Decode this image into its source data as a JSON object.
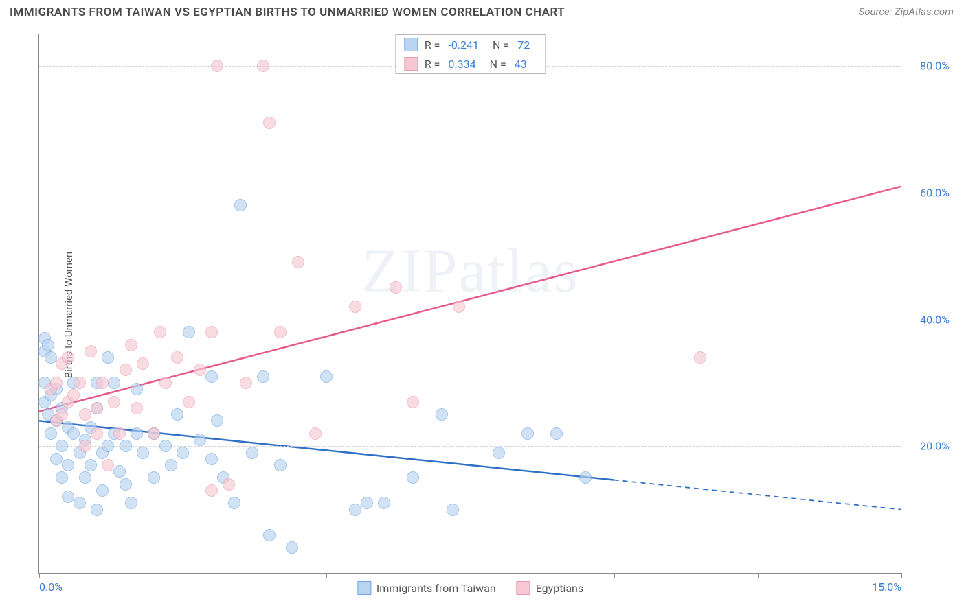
{
  "title": "IMMIGRANTS FROM TAIWAN VS EGYPTIAN BIRTHS TO UNMARRIED WOMEN CORRELATION CHART",
  "source": "Source: ZipAtlas.com",
  "watermark": "ZIPatlas",
  "chart": {
    "type": "scatter",
    "ylabel": "Births to Unmarried Women",
    "xlim": [
      0,
      15
    ],
    "ylim": [
      0,
      85
    ],
    "xtick_positions": [
      0,
      2.5,
      5,
      7.5,
      10,
      12.5,
      15
    ],
    "xtick_labels": {
      "0": "0.0%",
      "15": "15.0%"
    },
    "ytick_positions": [
      20,
      40,
      60,
      80
    ],
    "ytick_labels": {
      "20": "20.0%",
      "40": "40.0%",
      "60": "60.0%",
      "80": "80.0%"
    },
    "grid_color": "#d8d8d8",
    "axis_color": "#888888",
    "background_color": "#ffffff",
    "tick_label_color": "#3b7fd4",
    "marker_radius": 9,
    "series": [
      {
        "name": "Immigrants from Taiwan",
        "color_fill": "#b9d4f1",
        "color_stroke": "#6fa8e0",
        "fill_opacity": 0.65,
        "R": "-0.241",
        "N": "72",
        "trend": {
          "x1": 0,
          "y1": 24,
          "x2": 15,
          "y2": 10,
          "solid_until_x": 10,
          "color": "#2f6fc4",
          "width": 2.5
        },
        "points": [
          [
            0.1,
            30
          ],
          [
            0.1,
            35
          ],
          [
            0.1,
            37
          ],
          [
            0.15,
            36
          ],
          [
            0.1,
            27
          ],
          [
            0.15,
            25
          ],
          [
            0.2,
            28
          ],
          [
            0.2,
            34
          ],
          [
            0.2,
            22
          ],
          [
            0.3,
            29
          ],
          [
            0.3,
            24
          ],
          [
            0.3,
            18
          ],
          [
            0.4,
            26
          ],
          [
            0.4,
            20
          ],
          [
            0.4,
            15
          ],
          [
            0.5,
            23
          ],
          [
            0.5,
            17
          ],
          [
            0.5,
            12
          ],
          [
            0.6,
            30
          ],
          [
            0.6,
            22
          ],
          [
            0.7,
            19
          ],
          [
            0.7,
            11
          ],
          [
            0.8,
            21
          ],
          [
            0.8,
            15
          ],
          [
            0.9,
            23
          ],
          [
            0.9,
            17
          ],
          [
            1.0,
            30
          ],
          [
            1.0,
            10
          ],
          [
            1.0,
            26
          ],
          [
            1.1,
            19
          ],
          [
            1.1,
            13
          ],
          [
            1.2,
            34
          ],
          [
            1.2,
            20
          ],
          [
            1.3,
            30
          ],
          [
            1.3,
            22
          ],
          [
            1.4,
            16
          ],
          [
            1.5,
            14
          ],
          [
            1.5,
            20
          ],
          [
            1.6,
            11
          ],
          [
            1.7,
            22
          ],
          [
            1.7,
            29
          ],
          [
            1.8,
            19
          ],
          [
            2.0,
            15
          ],
          [
            2.0,
            22
          ],
          [
            2.2,
            20
          ],
          [
            2.3,
            17
          ],
          [
            2.4,
            25
          ],
          [
            2.5,
            19
          ],
          [
            2.6,
            38
          ],
          [
            2.8,
            21
          ],
          [
            3.0,
            18
          ],
          [
            3.0,
            31
          ],
          [
            3.1,
            24
          ],
          [
            3.2,
            15
          ],
          [
            3.4,
            11
          ],
          [
            3.5,
            58
          ],
          [
            3.7,
            19
          ],
          [
            3.9,
            31
          ],
          [
            4.0,
            6
          ],
          [
            4.2,
            17
          ],
          [
            4.4,
            4
          ],
          [
            5.0,
            31
          ],
          [
            5.5,
            10
          ],
          [
            5.7,
            11
          ],
          [
            6.0,
            11
          ],
          [
            6.5,
            15
          ],
          [
            7.0,
            25
          ],
          [
            7.2,
            10
          ],
          [
            8.0,
            19
          ],
          [
            8.5,
            22
          ],
          [
            9.0,
            22
          ],
          [
            9.5,
            15
          ]
        ]
      },
      {
        "name": "Egyptians",
        "color_fill": "#f7c8d4",
        "color_stroke": "#ea9db2",
        "fill_opacity": 0.65,
        "R": "0.334",
        "N": "43",
        "trend": {
          "x1": 0,
          "y1": 25.5,
          "x2": 15,
          "y2": 61,
          "solid_until_x": 15,
          "color": "#e85a8b",
          "width": 2.5
        },
        "points": [
          [
            0.2,
            29
          ],
          [
            0.3,
            30
          ],
          [
            0.3,
            24
          ],
          [
            0.4,
            33
          ],
          [
            0.4,
            25
          ],
          [
            0.5,
            27
          ],
          [
            0.5,
            34
          ],
          [
            0.6,
            28
          ],
          [
            0.7,
            30
          ],
          [
            0.8,
            25
          ],
          [
            0.8,
            20
          ],
          [
            0.9,
            35
          ],
          [
            1.0,
            26
          ],
          [
            1.0,
            22
          ],
          [
            1.1,
            30
          ],
          [
            1.2,
            17
          ],
          [
            1.3,
            27
          ],
          [
            1.4,
            22
          ],
          [
            1.5,
            32
          ],
          [
            1.6,
            36
          ],
          [
            1.7,
            26
          ],
          [
            1.8,
            33
          ],
          [
            2.0,
            22
          ],
          [
            2.1,
            38
          ],
          [
            2.2,
            30
          ],
          [
            2.4,
            34
          ],
          [
            2.6,
            27
          ],
          [
            2.8,
            32
          ],
          [
            3.0,
            38
          ],
          [
            3.0,
            13
          ],
          [
            3.1,
            80
          ],
          [
            3.3,
            14
          ],
          [
            3.6,
            30
          ],
          [
            3.9,
            80
          ],
          [
            4.0,
            71
          ],
          [
            4.2,
            38
          ],
          [
            4.5,
            49
          ],
          [
            4.8,
            22
          ],
          [
            5.5,
            42
          ],
          [
            6.2,
            45
          ],
          [
            6.5,
            27
          ],
          [
            7.3,
            42
          ],
          [
            11.5,
            34
          ]
        ]
      }
    ],
    "legend_bottom": [
      {
        "label": "Immigrants from Taiwan",
        "fill": "#b9d4f1",
        "stroke": "#6fa8e0"
      },
      {
        "label": "Egyptians",
        "fill": "#f7c8d4",
        "stroke": "#ea9db2"
      }
    ]
  }
}
